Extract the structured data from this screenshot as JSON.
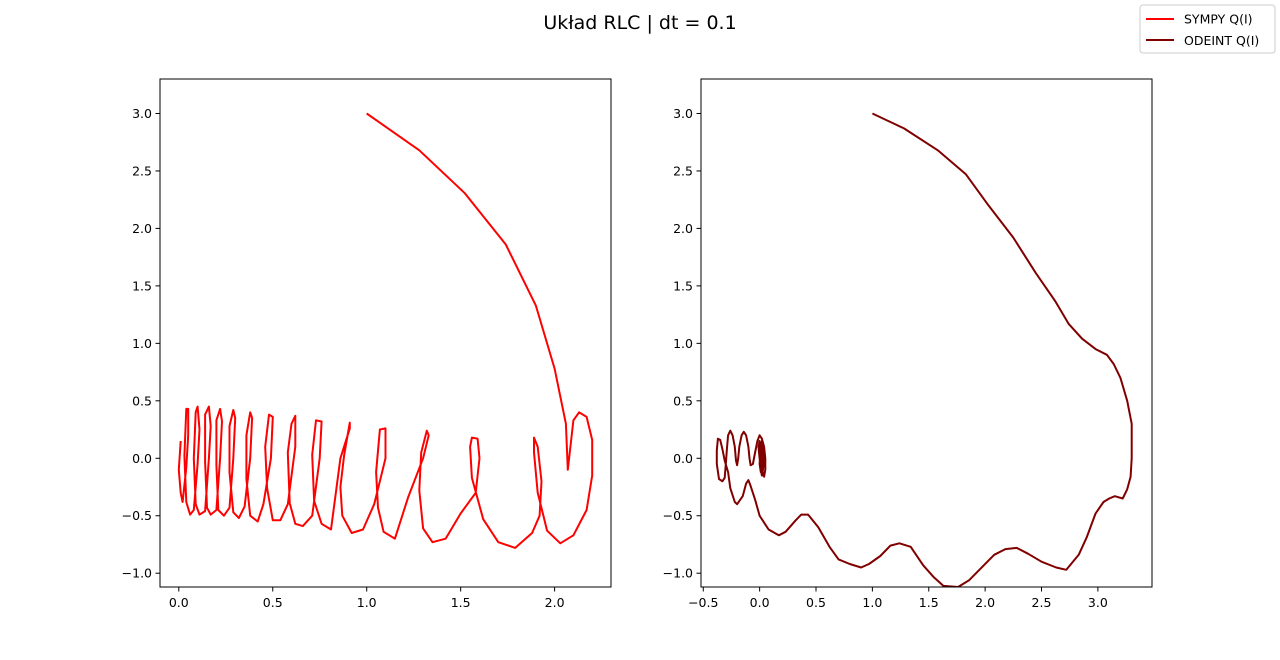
{
  "figure": {
    "title": "Układ RLC | dt = 0.1",
    "legend_placement": "top-right"
  },
  "chart_data": [
    {
      "type": "line",
      "xlim": [
        -0.1,
        2.3
      ],
      "ylim": [
        -1.12,
        3.3
      ],
      "xticks": [
        0.0,
        0.5,
        1.0,
        1.5,
        2.0
      ],
      "xtick_labels": [
        "0.0",
        "0.5",
        "1.0",
        "1.5",
        "2.0"
      ],
      "yticks": [
        -1.0,
        -0.5,
        0.0,
        0.5,
        1.0,
        1.5,
        2.0,
        2.5,
        3.0
      ],
      "ytick_labels": [
        "−1.0",
        "−0.5",
        "0.0",
        "0.5",
        "1.0",
        "1.5",
        "2.0",
        "2.5",
        "3.0"
      ],
      "grid": false,
      "series": [
        {
          "name": "SYMPY Q(I)",
          "color": "#ff0000",
          "x": [
            1.0,
            1.28,
            1.52,
            1.74,
            1.9,
            2.0,
            2.06,
            2.07,
            2.1,
            2.13,
            2.17,
            2.2,
            2.2,
            2.17,
            2.1,
            2.03,
            1.96,
            1.91,
            1.89,
            1.89,
            1.91,
            1.93,
            1.92,
            1.88,
            1.79,
            1.7,
            1.62,
            1.56,
            1.55,
            1.56,
            1.59,
            1.6,
            1.58,
            1.5,
            1.42,
            1.35,
            1.3,
            1.28,
            1.29,
            1.32,
            1.33,
            1.3,
            1.22,
            1.15,
            1.09,
            1.06,
            1.05,
            1.07,
            1.1,
            1.1,
            1.04,
            0.98,
            0.92,
            0.87,
            0.86,
            0.88,
            0.91,
            0.91,
            0.86,
            0.81,
            0.76,
            0.72,
            0.71,
            0.73,
            0.76,
            0.75,
            0.71,
            0.66,
            0.62,
            0.59,
            0.58,
            0.6,
            0.62,
            0.62,
            0.58,
            0.54,
            0.5,
            0.47,
            0.46,
            0.48,
            0.5,
            0.49,
            0.45,
            0.42,
            0.38,
            0.36,
            0.36,
            0.38,
            0.39,
            0.38,
            0.35,
            0.32,
            0.29,
            0.27,
            0.27,
            0.29,
            0.3,
            0.29,
            0.27,
            0.24,
            0.21,
            0.2,
            0.2,
            0.22,
            0.23,
            0.22,
            0.2,
            0.17,
            0.15,
            0.14,
            0.14,
            0.16,
            0.17,
            0.16,
            0.14,
            0.11,
            0.09,
            0.08,
            0.09,
            0.1,
            0.11,
            0.1,
            0.08,
            0.06,
            0.04,
            0.03,
            0.04,
            0.05,
            0.05,
            0.04,
            0.02,
            0.01,
            0.0,
            0.01
          ],
          "y": [
            3.0,
            2.68,
            2.31,
            1.86,
            1.33,
            0.78,
            0.3,
            -0.1,
            0.33,
            0.4,
            0.36,
            0.16,
            -0.15,
            -0.45,
            -0.67,
            -0.74,
            -0.63,
            -0.3,
            0.05,
            0.18,
            0.1,
            -0.2,
            -0.5,
            -0.65,
            -0.78,
            -0.73,
            -0.53,
            -0.17,
            0.1,
            0.18,
            0.17,
            0.0,
            -0.3,
            -0.48,
            -0.7,
            -0.73,
            -0.61,
            -0.28,
            0.05,
            0.24,
            0.2,
            0.0,
            -0.34,
            -0.7,
            -0.64,
            -0.43,
            -0.12,
            0.25,
            0.26,
            0.0,
            -0.4,
            -0.62,
            -0.65,
            -0.5,
            -0.25,
            0.03,
            0.31,
            0.26,
            0.0,
            -0.62,
            -0.57,
            -0.37,
            0.03,
            0.33,
            0.32,
            0.0,
            -0.5,
            -0.59,
            -0.57,
            -0.39,
            0.05,
            0.3,
            0.37,
            0.1,
            -0.4,
            -0.54,
            -0.54,
            -0.26,
            0.1,
            0.38,
            0.36,
            0.0,
            -0.4,
            -0.55,
            -0.5,
            -0.18,
            0.2,
            0.4,
            0.35,
            0.0,
            -0.42,
            -0.52,
            -0.47,
            -0.12,
            0.28,
            0.42,
            0.35,
            0.0,
            -0.43,
            -0.5,
            -0.45,
            -0.06,
            0.33,
            0.43,
            0.32,
            0.0,
            -0.45,
            -0.49,
            -0.43,
            -0.03,
            0.38,
            0.45,
            0.28,
            0.0,
            -0.46,
            -0.49,
            -0.4,
            0.0,
            0.4,
            0.45,
            0.25,
            -0.05,
            -0.45,
            -0.49,
            -0.38,
            0.02,
            0.43,
            0.43,
            0.2,
            -0.08,
            -0.38,
            -0.3,
            -0.1,
            0.15
          ]
        }
      ]
    },
    {
      "type": "line",
      "xlim": [
        -0.52,
        3.48
      ],
      "ylim": [
        -1.12,
        3.3
      ],
      "xticks": [
        -0.5,
        0.0,
        0.5,
        1.0,
        1.5,
        2.0,
        2.5,
        3.0
      ],
      "xtick_labels": [
        "−0.5",
        "0.0",
        "0.5",
        "1.0",
        "1.5",
        "2.0",
        "2.5",
        "3.0"
      ],
      "yticks": [
        -1.0,
        -0.5,
        0.0,
        0.5,
        1.0,
        1.5,
        2.0,
        2.5,
        3.0
      ],
      "ytick_labels": [
        "−1.0",
        "−0.5",
        "0.0",
        "0.5",
        "1.0",
        "1.5",
        "2.0",
        "2.5",
        "3.0"
      ],
      "grid": false,
      "series": [
        {
          "name": "ODEINT Q(I)",
          "color": "#800000",
          "x": [
            1.0,
            1.28,
            1.58,
            1.83,
            2.03,
            2.25,
            2.45,
            2.62,
            2.74,
            2.86,
            2.98,
            3.08,
            3.14,
            3.2,
            3.26,
            3.3,
            3.3,
            3.29,
            3.26,
            3.22,
            3.15,
            3.1,
            3.05,
            2.98,
            2.9,
            2.83,
            2.72,
            2.63,
            2.5,
            2.38,
            2.28,
            2.18,
            2.08,
            1.96,
            1.86,
            1.76,
            1.63,
            1.54,
            1.45,
            1.34,
            1.24,
            1.16,
            1.07,
            0.97,
            0.9,
            0.8,
            0.7,
            0.62,
            0.52,
            0.43,
            0.37,
            0.32,
            0.23,
            0.17,
            0.08,
            0.0,
            -0.04,
            -0.08,
            -0.1,
            -0.12,
            -0.15,
            -0.2,
            -0.22,
            -0.26,
            -0.28,
            -0.31,
            -0.33,
            -0.35,
            -0.37,
            -0.38,
            -0.38,
            -0.36,
            -0.33,
            -0.31,
            -0.3,
            -0.29,
            -0.28,
            -0.26,
            -0.24,
            -0.22,
            -0.21,
            -0.2,
            -0.19,
            -0.18,
            -0.16,
            -0.14,
            -0.12,
            -0.1,
            -0.09,
            -0.08,
            -0.06,
            -0.04,
            -0.02,
            0.0,
            0.02,
            0.04,
            0.05,
            0.05,
            0.04,
            0.03,
            0.02,
            0.01,
            0.0,
            -0.01,
            0.0,
            0.01,
            0.02,
            0.03,
            0.04,
            0.03,
            0.02,
            0.01,
            0.0,
            0.01,
            0.02,
            0.03,
            0.02,
            0.01,
            0.02
          ],
          "y": [
            3.0,
            2.87,
            2.68,
            2.47,
            2.2,
            1.92,
            1.61,
            1.37,
            1.17,
            1.04,
            0.95,
            0.9,
            0.82,
            0.7,
            0.5,
            0.3,
            0.0,
            -0.16,
            -0.27,
            -0.35,
            -0.33,
            -0.35,
            -0.38,
            -0.48,
            -0.69,
            -0.84,
            -0.97,
            -0.95,
            -0.9,
            -0.83,
            -0.78,
            -0.79,
            -0.84,
            -0.96,
            -1.06,
            -1.12,
            -1.11,
            -1.03,
            -0.93,
            -0.77,
            -0.74,
            -0.76,
            -0.85,
            -0.92,
            -0.95,
            -0.92,
            -0.88,
            -0.77,
            -0.6,
            -0.49,
            -0.49,
            -0.54,
            -0.64,
            -0.67,
            -0.62,
            -0.5,
            -0.36,
            -0.24,
            -0.19,
            -0.22,
            -0.33,
            -0.4,
            -0.38,
            -0.26,
            -0.12,
            -0.02,
            0.08,
            0.16,
            0.17,
            0.07,
            -0.05,
            -0.18,
            -0.2,
            -0.17,
            -0.05,
            0.08,
            0.2,
            0.24,
            0.2,
            0.1,
            -0.02,
            -0.06,
            0.0,
            0.1,
            0.2,
            0.23,
            0.2,
            0.1,
            0.0,
            -0.06,
            -0.05,
            0.05,
            0.15,
            0.2,
            0.17,
            0.1,
            0.0,
            -0.1,
            -0.16,
            -0.14,
            -0.05,
            0.05,
            0.15,
            0.1,
            0.0,
            -0.1,
            -0.15,
            -0.1,
            0.0,
            0.12,
            0.15,
            0.08,
            -0.05,
            -0.12,
            -0.08,
            0.04,
            0.12,
            0.08,
            0.0
          ]
        }
      ]
    }
  ]
}
